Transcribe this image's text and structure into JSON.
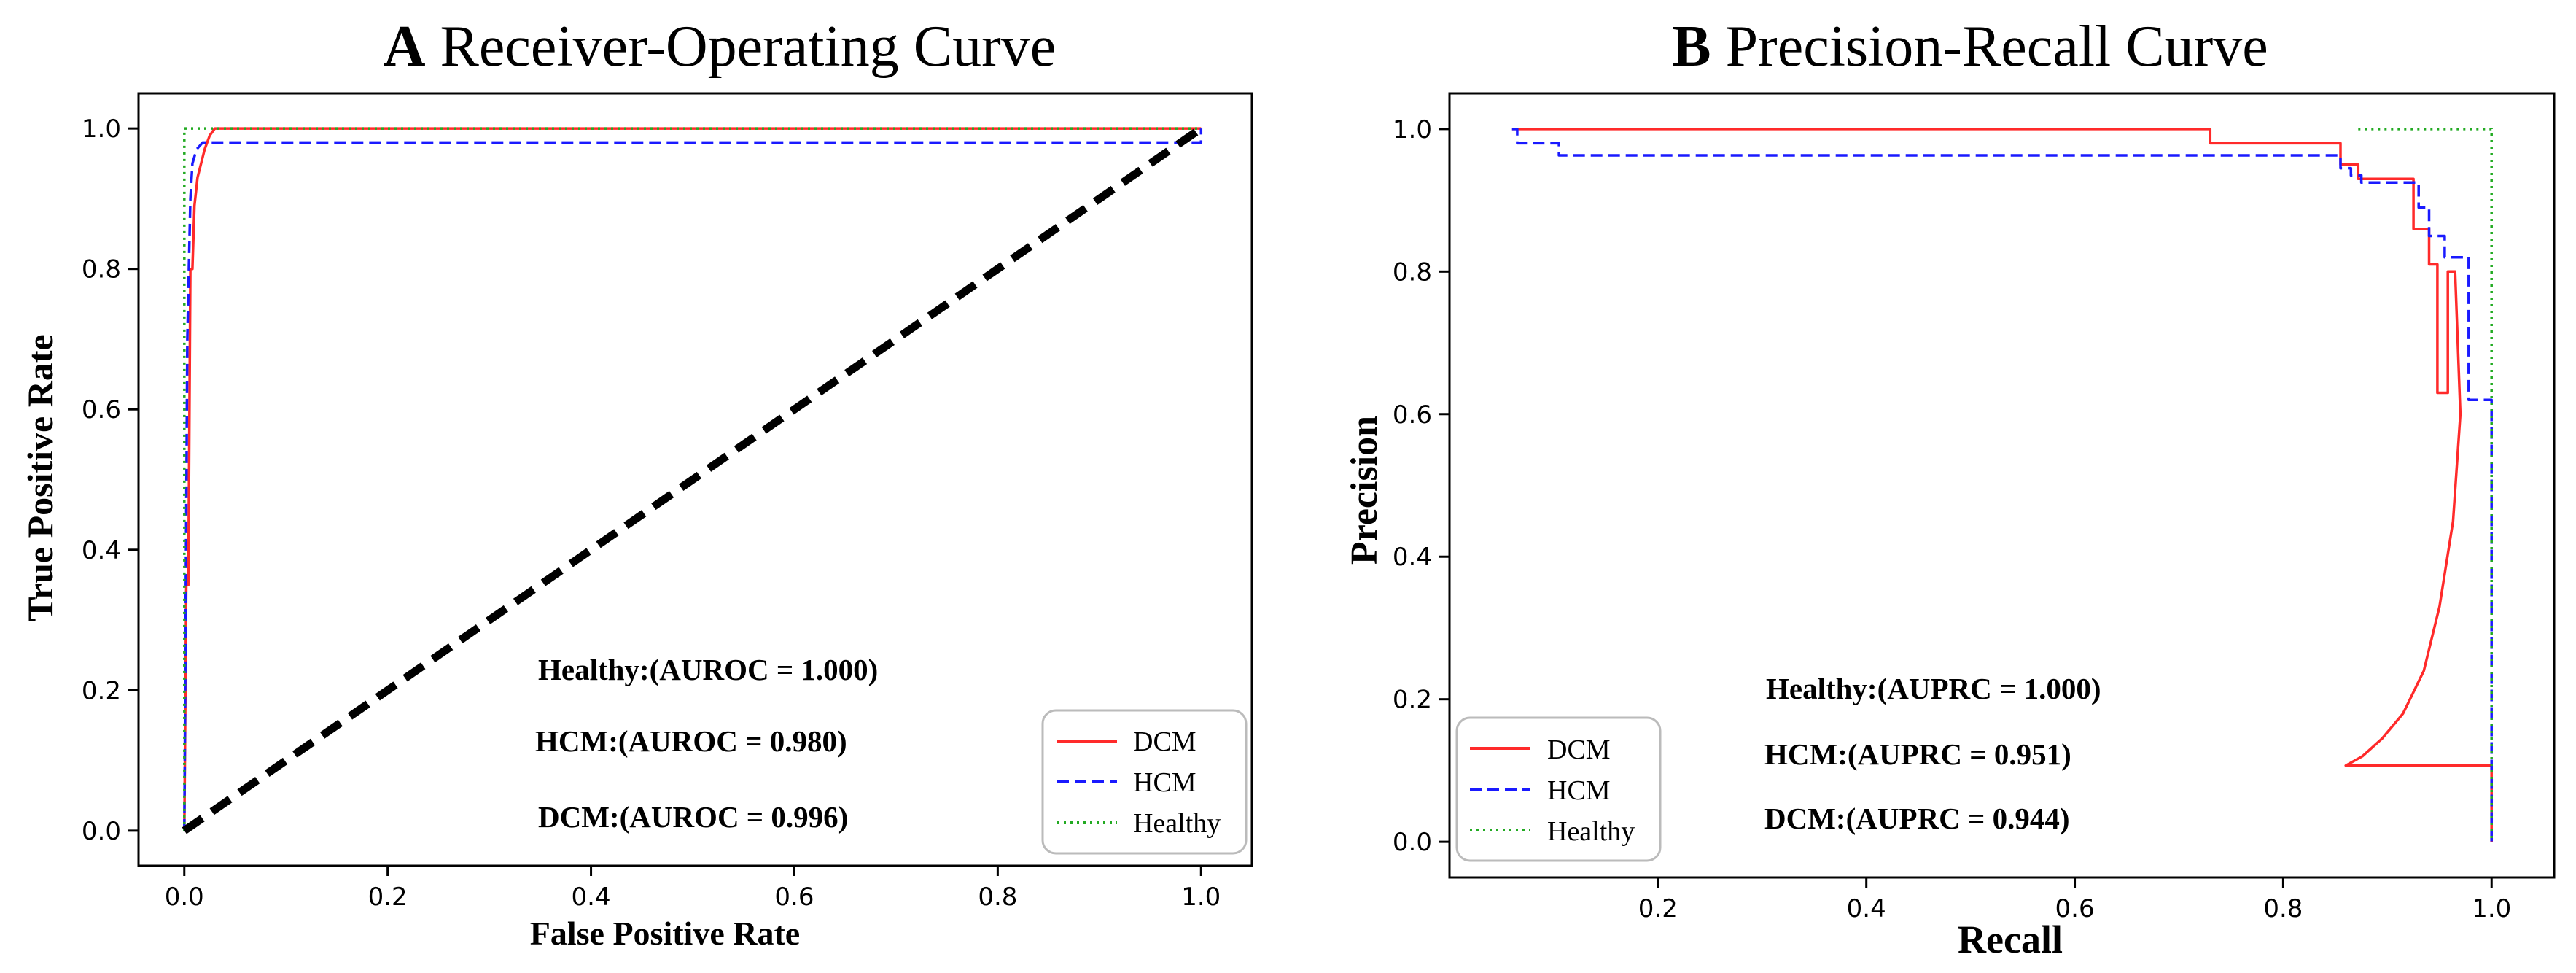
{
  "chart_data": [
    {
      "type": "line",
      "panel_letter": "A",
      "title": "Receiver-Operating Curve",
      "xlabel": "False Positive Rate",
      "ylabel": "True Positive Rate",
      "xlim": [
        -0.045,
        1.05
      ],
      "ylim": [
        -0.05,
        1.05
      ],
      "xticks": [
        0.0,
        0.2,
        0.4,
        0.6,
        0.8,
        1.0
      ],
      "xtick_labels": [
        "0.0",
        "0.2",
        "0.4",
        "0.6",
        "0.8",
        "1.0"
      ],
      "yticks": [
        0.0,
        0.2,
        0.4,
        0.6,
        0.8,
        1.0
      ],
      "ytick_labels": [
        "0.0",
        "0.2",
        "0.4",
        "0.6",
        "0.8",
        "1.0"
      ],
      "grid": false,
      "legend_position": "lower-right",
      "series": [
        {
          "name": "DCM",
          "color": "#ff2a2a",
          "style": "solid",
          "x": [
            0.0,
            0.002,
            0.004,
            0.006,
            0.008,
            0.01,
            0.013,
            0.02,
            0.025,
            0.03,
            1.0
          ],
          "y": [
            0.0,
            0.35,
            0.35,
            0.8,
            0.8,
            0.89,
            0.93,
            0.97,
            0.99,
            1.0,
            1.0
          ]
        },
        {
          "name": "HCM",
          "color": "#1a1aff",
          "style": "dashed",
          "x": [
            0.0,
            0.003,
            0.006,
            0.008,
            0.012,
            0.018,
            1.0,
            1.0
          ],
          "y": [
            0.0,
            0.7,
            0.9,
            0.95,
            0.97,
            0.98,
            0.98,
            1.0
          ]
        },
        {
          "name": "Healthy",
          "color": "#22aa22",
          "style": "dotted",
          "x": [
            0.0,
            0.0,
            1.0
          ],
          "y": [
            0.0,
            1.0,
            1.0
          ]
        },
        {
          "name": "chance",
          "color": "#000000",
          "style": "bold-dashed",
          "x": [
            0.0,
            1.0
          ],
          "y": [
            0.0,
            1.0
          ]
        }
      ],
      "annotations": [
        "Healthy:(AUROC = 1.000)",
        "HCM:(AUROC = 0.980)",
        "DCM:(AUROC = 0.996)"
      ],
      "legend": [
        "DCM",
        "HCM",
        "Healthy"
      ]
    },
    {
      "type": "line",
      "panel_letter": "B",
      "title": "Precision-Recall Curve",
      "xlabel": "Recall",
      "ylabel": "Precision",
      "xlim": [
        0.0,
        1.06
      ],
      "ylim": [
        -0.05,
        1.05
      ],
      "xticks": [
        0.2,
        0.4,
        0.6,
        0.8,
        1.0
      ],
      "xtick_labels": [
        "0.2",
        "0.4",
        "0.6",
        "0.8",
        "1.0"
      ],
      "yticks": [
        0.0,
        0.2,
        0.4,
        0.6,
        0.8,
        1.0
      ],
      "ytick_labels": [
        "0.0",
        "0.2",
        "0.4",
        "0.6",
        "0.8",
        "1.0"
      ],
      "grid": false,
      "legend_position": "lower-left",
      "series": [
        {
          "name": "DCM",
          "color": "#ff2a2a",
          "style": "solid",
          "x": [
            0.06,
            0.73,
            0.73,
            0.855,
            0.855,
            0.872,
            0.872,
            0.885,
            0.885,
            0.925,
            0.925,
            0.94,
            0.94,
            0.948,
            0.948,
            0.958,
            0.958,
            0.965,
            0.97,
            0.963,
            0.95,
            0.935,
            0.915,
            0.895,
            0.876,
            0.86,
            1.0,
            1.0
          ],
          "y": [
            1.0,
            1.0,
            0.98,
            0.98,
            0.95,
            0.95,
            0.93,
            0.93,
            0.93,
            0.93,
            0.86,
            0.86,
            0.81,
            0.81,
            0.63,
            0.63,
            0.8,
            0.8,
            0.6,
            0.45,
            0.33,
            0.24,
            0.18,
            0.145,
            0.12,
            0.107,
            0.107,
            0.0
          ]
        },
        {
          "name": "HCM",
          "color": "#1a1aff",
          "style": "dashed",
          "x": [
            0.06,
            0.065,
            0.065,
            0.105,
            0.105,
            0.855,
            0.855,
            0.865,
            0.865,
            0.875,
            0.875,
            0.89,
            0.89,
            0.93,
            0.93,
            0.94,
            0.94,
            0.955,
            0.955,
            0.968,
            0.968,
            0.978,
            0.978,
            1.0,
            1.0
          ],
          "y": [
            1.0,
            1.0,
            0.98,
            0.98,
            0.963,
            0.963,
            0.945,
            0.945,
            0.935,
            0.935,
            0.925,
            0.925,
            0.925,
            0.925,
            0.89,
            0.89,
            0.85,
            0.85,
            0.82,
            0.82,
            0.82,
            0.82,
            0.62,
            0.62,
            0.0
          ]
        },
        {
          "name": "Healthy",
          "color": "#22aa22",
          "style": "dotted",
          "x": [
            0.872,
            1.0,
            1.0
          ],
          "y": [
            1.0,
            1.0,
            0.0
          ]
        }
      ],
      "annotations": [
        "Healthy:(AUPRC = 1.000)",
        "HCM:(AUPRC = 0.951)",
        "DCM:(AUPRC = 0.944)"
      ],
      "legend": [
        "DCM",
        "HCM",
        "Healthy"
      ]
    }
  ]
}
